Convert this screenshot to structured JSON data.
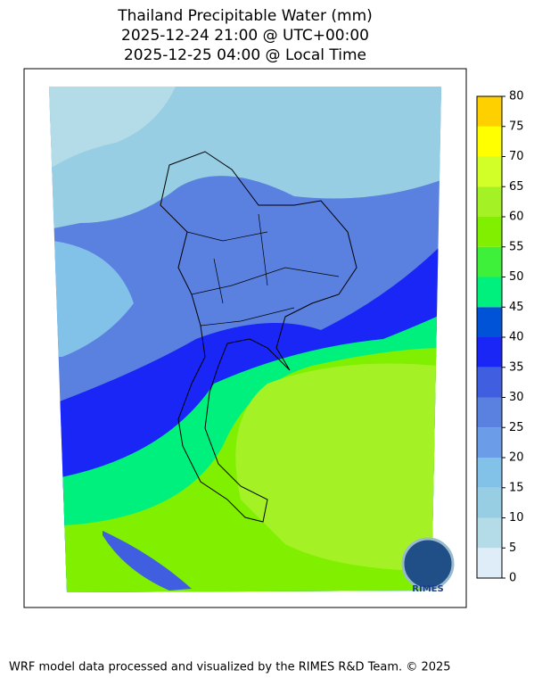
{
  "title": [
    "Thailand Precipitable Water (mm)",
    "2025-12-24 21:00 @ UTC+00:00",
    "2025-12-25 04:00 @ Local Time"
  ],
  "colorbar": {
    "lim": [
      0,
      80
    ],
    "ticks": [
      0,
      5,
      10,
      15,
      20,
      25,
      30,
      35,
      40,
      45,
      50,
      55,
      60,
      65,
      70,
      75,
      80
    ],
    "colors": [
      "#deedf7",
      "#b4dbe8",
      "#97cee3",
      "#82c1e8",
      "#6a9ce8",
      "#5a80e0",
      "#3f5fe0",
      "#1a26f5",
      "#0052d6",
      "#00f07e",
      "#3ef03a",
      "#80f000",
      "#a4f226",
      "#d2ff28",
      "#ffff00",
      "#ffd000"
    ]
  },
  "logo": "RIMES",
  "footer": "WRF model data processed and visualized by the RIMES R&D Team. © 2025"
}
